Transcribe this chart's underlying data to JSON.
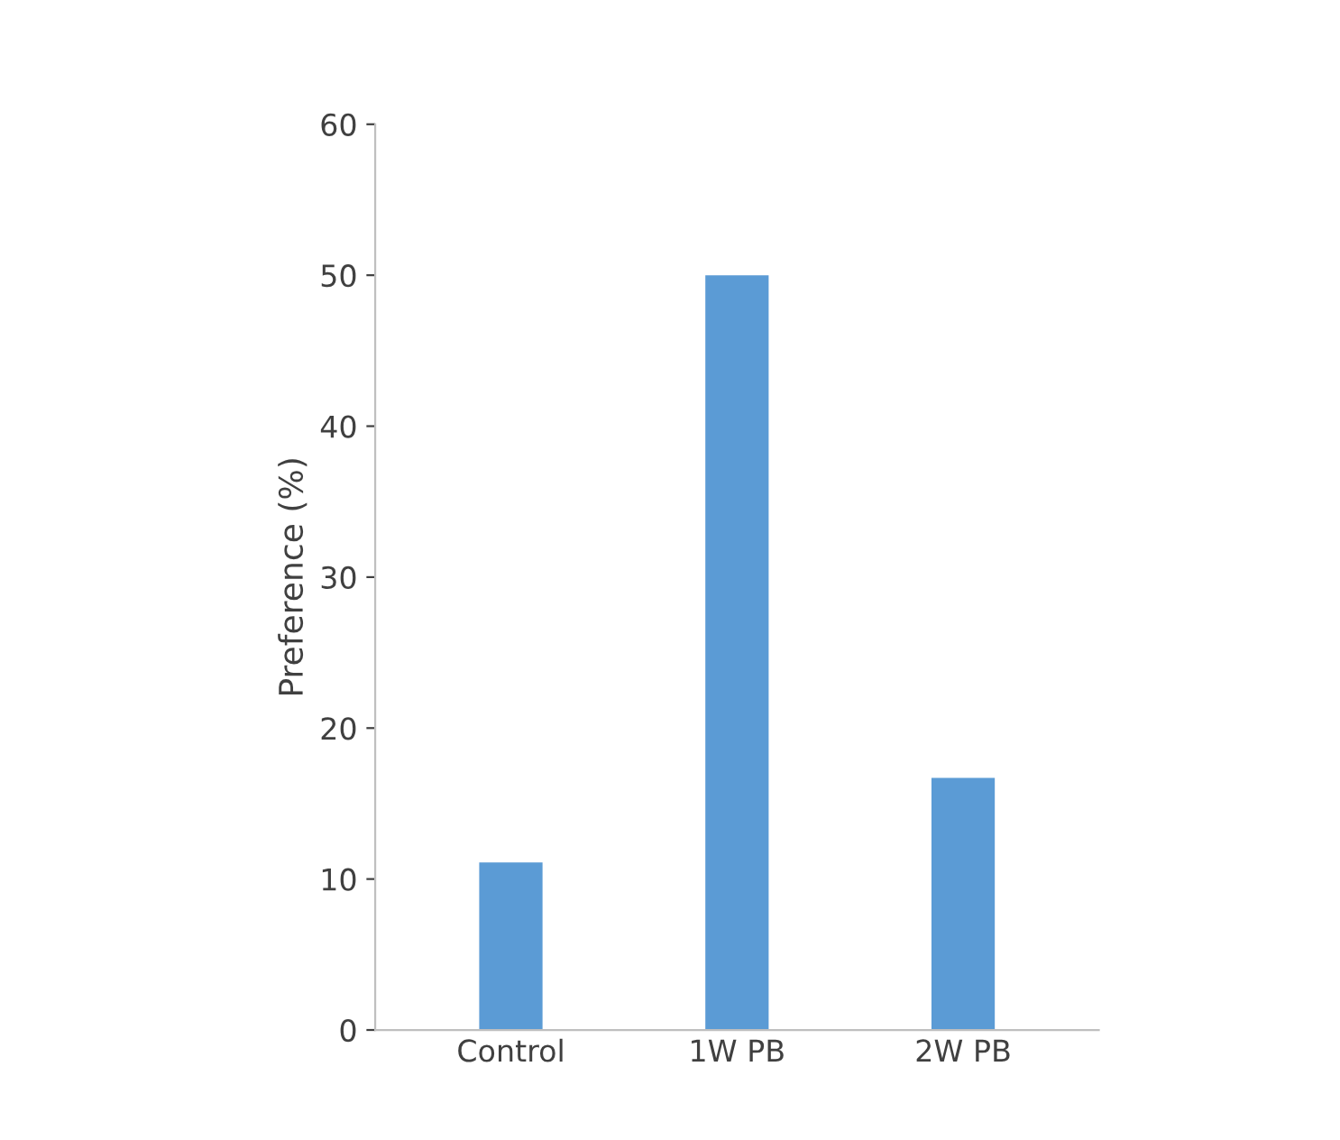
{
  "chart_data": {
    "type": "bar",
    "ylabel": "Preference (%)",
    "categories": [
      "Control",
      "1W PB",
      "2W PB"
    ],
    "values": [
      11.1,
      50,
      16.7
    ],
    "color": "#5b9bd5",
    "ylim": [
      0,
      60
    ],
    "yticks": [
      0,
      10,
      20,
      30,
      40,
      50,
      60
    ],
    "grid": false,
    "legend": false
  }
}
